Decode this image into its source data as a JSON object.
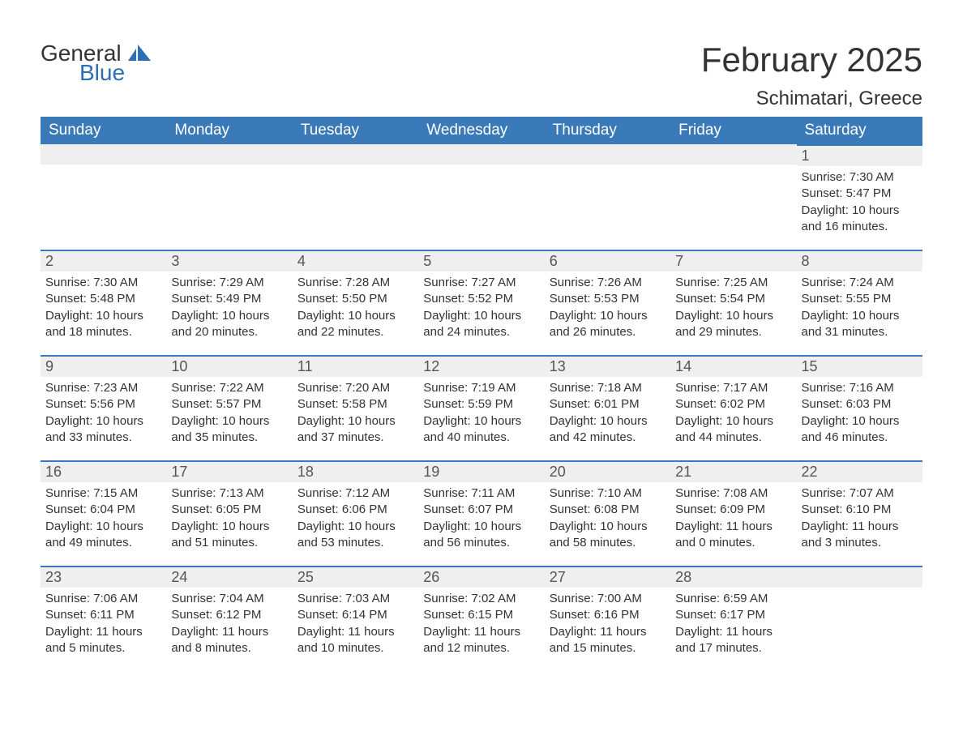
{
  "logo": {
    "general": "General",
    "blue": "Blue"
  },
  "colors": {
    "header_bg": "#3b7ab8",
    "day_row_bg": "#efefef",
    "day_border": "#3b7ab8",
    "text": "#333333",
    "logo_blue": "#2c6fb5"
  },
  "title": "February 2025",
  "location": "Schimatari, Greece",
  "weekdays": [
    "Sunday",
    "Monday",
    "Tuesday",
    "Wednesday",
    "Thursday",
    "Friday",
    "Saturday"
  ],
  "weeks": [
    [
      null,
      null,
      null,
      null,
      null,
      null,
      {
        "n": "1",
        "sunrise": "Sunrise: 7:30 AM",
        "sunset": "Sunset: 5:47 PM",
        "daylight": "Daylight: 10 hours and 16 minutes."
      }
    ],
    [
      {
        "n": "2",
        "sunrise": "Sunrise: 7:30 AM",
        "sunset": "Sunset: 5:48 PM",
        "daylight": "Daylight: 10 hours and 18 minutes."
      },
      {
        "n": "3",
        "sunrise": "Sunrise: 7:29 AM",
        "sunset": "Sunset: 5:49 PM",
        "daylight": "Daylight: 10 hours and 20 minutes."
      },
      {
        "n": "4",
        "sunrise": "Sunrise: 7:28 AM",
        "sunset": "Sunset: 5:50 PM",
        "daylight": "Daylight: 10 hours and 22 minutes."
      },
      {
        "n": "5",
        "sunrise": "Sunrise: 7:27 AM",
        "sunset": "Sunset: 5:52 PM",
        "daylight": "Daylight: 10 hours and 24 minutes."
      },
      {
        "n": "6",
        "sunrise": "Sunrise: 7:26 AM",
        "sunset": "Sunset: 5:53 PM",
        "daylight": "Daylight: 10 hours and 26 minutes."
      },
      {
        "n": "7",
        "sunrise": "Sunrise: 7:25 AM",
        "sunset": "Sunset: 5:54 PM",
        "daylight": "Daylight: 10 hours and 29 minutes."
      },
      {
        "n": "8",
        "sunrise": "Sunrise: 7:24 AM",
        "sunset": "Sunset: 5:55 PM",
        "daylight": "Daylight: 10 hours and 31 minutes."
      }
    ],
    [
      {
        "n": "9",
        "sunrise": "Sunrise: 7:23 AM",
        "sunset": "Sunset: 5:56 PM",
        "daylight": "Daylight: 10 hours and 33 minutes."
      },
      {
        "n": "10",
        "sunrise": "Sunrise: 7:22 AM",
        "sunset": "Sunset: 5:57 PM",
        "daylight": "Daylight: 10 hours and 35 minutes."
      },
      {
        "n": "11",
        "sunrise": "Sunrise: 7:20 AM",
        "sunset": "Sunset: 5:58 PM",
        "daylight": "Daylight: 10 hours and 37 minutes."
      },
      {
        "n": "12",
        "sunrise": "Sunrise: 7:19 AM",
        "sunset": "Sunset: 5:59 PM",
        "daylight": "Daylight: 10 hours and 40 minutes."
      },
      {
        "n": "13",
        "sunrise": "Sunrise: 7:18 AM",
        "sunset": "Sunset: 6:01 PM",
        "daylight": "Daylight: 10 hours and 42 minutes."
      },
      {
        "n": "14",
        "sunrise": "Sunrise: 7:17 AM",
        "sunset": "Sunset: 6:02 PM",
        "daylight": "Daylight: 10 hours and 44 minutes."
      },
      {
        "n": "15",
        "sunrise": "Sunrise: 7:16 AM",
        "sunset": "Sunset: 6:03 PM",
        "daylight": "Daylight: 10 hours and 46 minutes."
      }
    ],
    [
      {
        "n": "16",
        "sunrise": "Sunrise: 7:15 AM",
        "sunset": "Sunset: 6:04 PM",
        "daylight": "Daylight: 10 hours and 49 minutes."
      },
      {
        "n": "17",
        "sunrise": "Sunrise: 7:13 AM",
        "sunset": "Sunset: 6:05 PM",
        "daylight": "Daylight: 10 hours and 51 minutes."
      },
      {
        "n": "18",
        "sunrise": "Sunrise: 7:12 AM",
        "sunset": "Sunset: 6:06 PM",
        "daylight": "Daylight: 10 hours and 53 minutes."
      },
      {
        "n": "19",
        "sunrise": "Sunrise: 7:11 AM",
        "sunset": "Sunset: 6:07 PM",
        "daylight": "Daylight: 10 hours and 56 minutes."
      },
      {
        "n": "20",
        "sunrise": "Sunrise: 7:10 AM",
        "sunset": "Sunset: 6:08 PM",
        "daylight": "Daylight: 10 hours and 58 minutes."
      },
      {
        "n": "21",
        "sunrise": "Sunrise: 7:08 AM",
        "sunset": "Sunset: 6:09 PM",
        "daylight": "Daylight: 11 hours and 0 minutes."
      },
      {
        "n": "22",
        "sunrise": "Sunrise: 7:07 AM",
        "sunset": "Sunset: 6:10 PM",
        "daylight": "Daylight: 11 hours and 3 minutes."
      }
    ],
    [
      {
        "n": "23",
        "sunrise": "Sunrise: 7:06 AM",
        "sunset": "Sunset: 6:11 PM",
        "daylight": "Daylight: 11 hours and 5 minutes."
      },
      {
        "n": "24",
        "sunrise": "Sunrise: 7:04 AM",
        "sunset": "Sunset: 6:12 PM",
        "daylight": "Daylight: 11 hours and 8 minutes."
      },
      {
        "n": "25",
        "sunrise": "Sunrise: 7:03 AM",
        "sunset": "Sunset: 6:14 PM",
        "daylight": "Daylight: 11 hours and 10 minutes."
      },
      {
        "n": "26",
        "sunrise": "Sunrise: 7:02 AM",
        "sunset": "Sunset: 6:15 PM",
        "daylight": "Daylight: 11 hours and 12 minutes."
      },
      {
        "n": "27",
        "sunrise": "Sunrise: 7:00 AM",
        "sunset": "Sunset: 6:16 PM",
        "daylight": "Daylight: 11 hours and 15 minutes."
      },
      {
        "n": "28",
        "sunrise": "Sunrise: 6:59 AM",
        "sunset": "Sunset: 6:17 PM",
        "daylight": "Daylight: 11 hours and 17 minutes."
      },
      null
    ]
  ]
}
